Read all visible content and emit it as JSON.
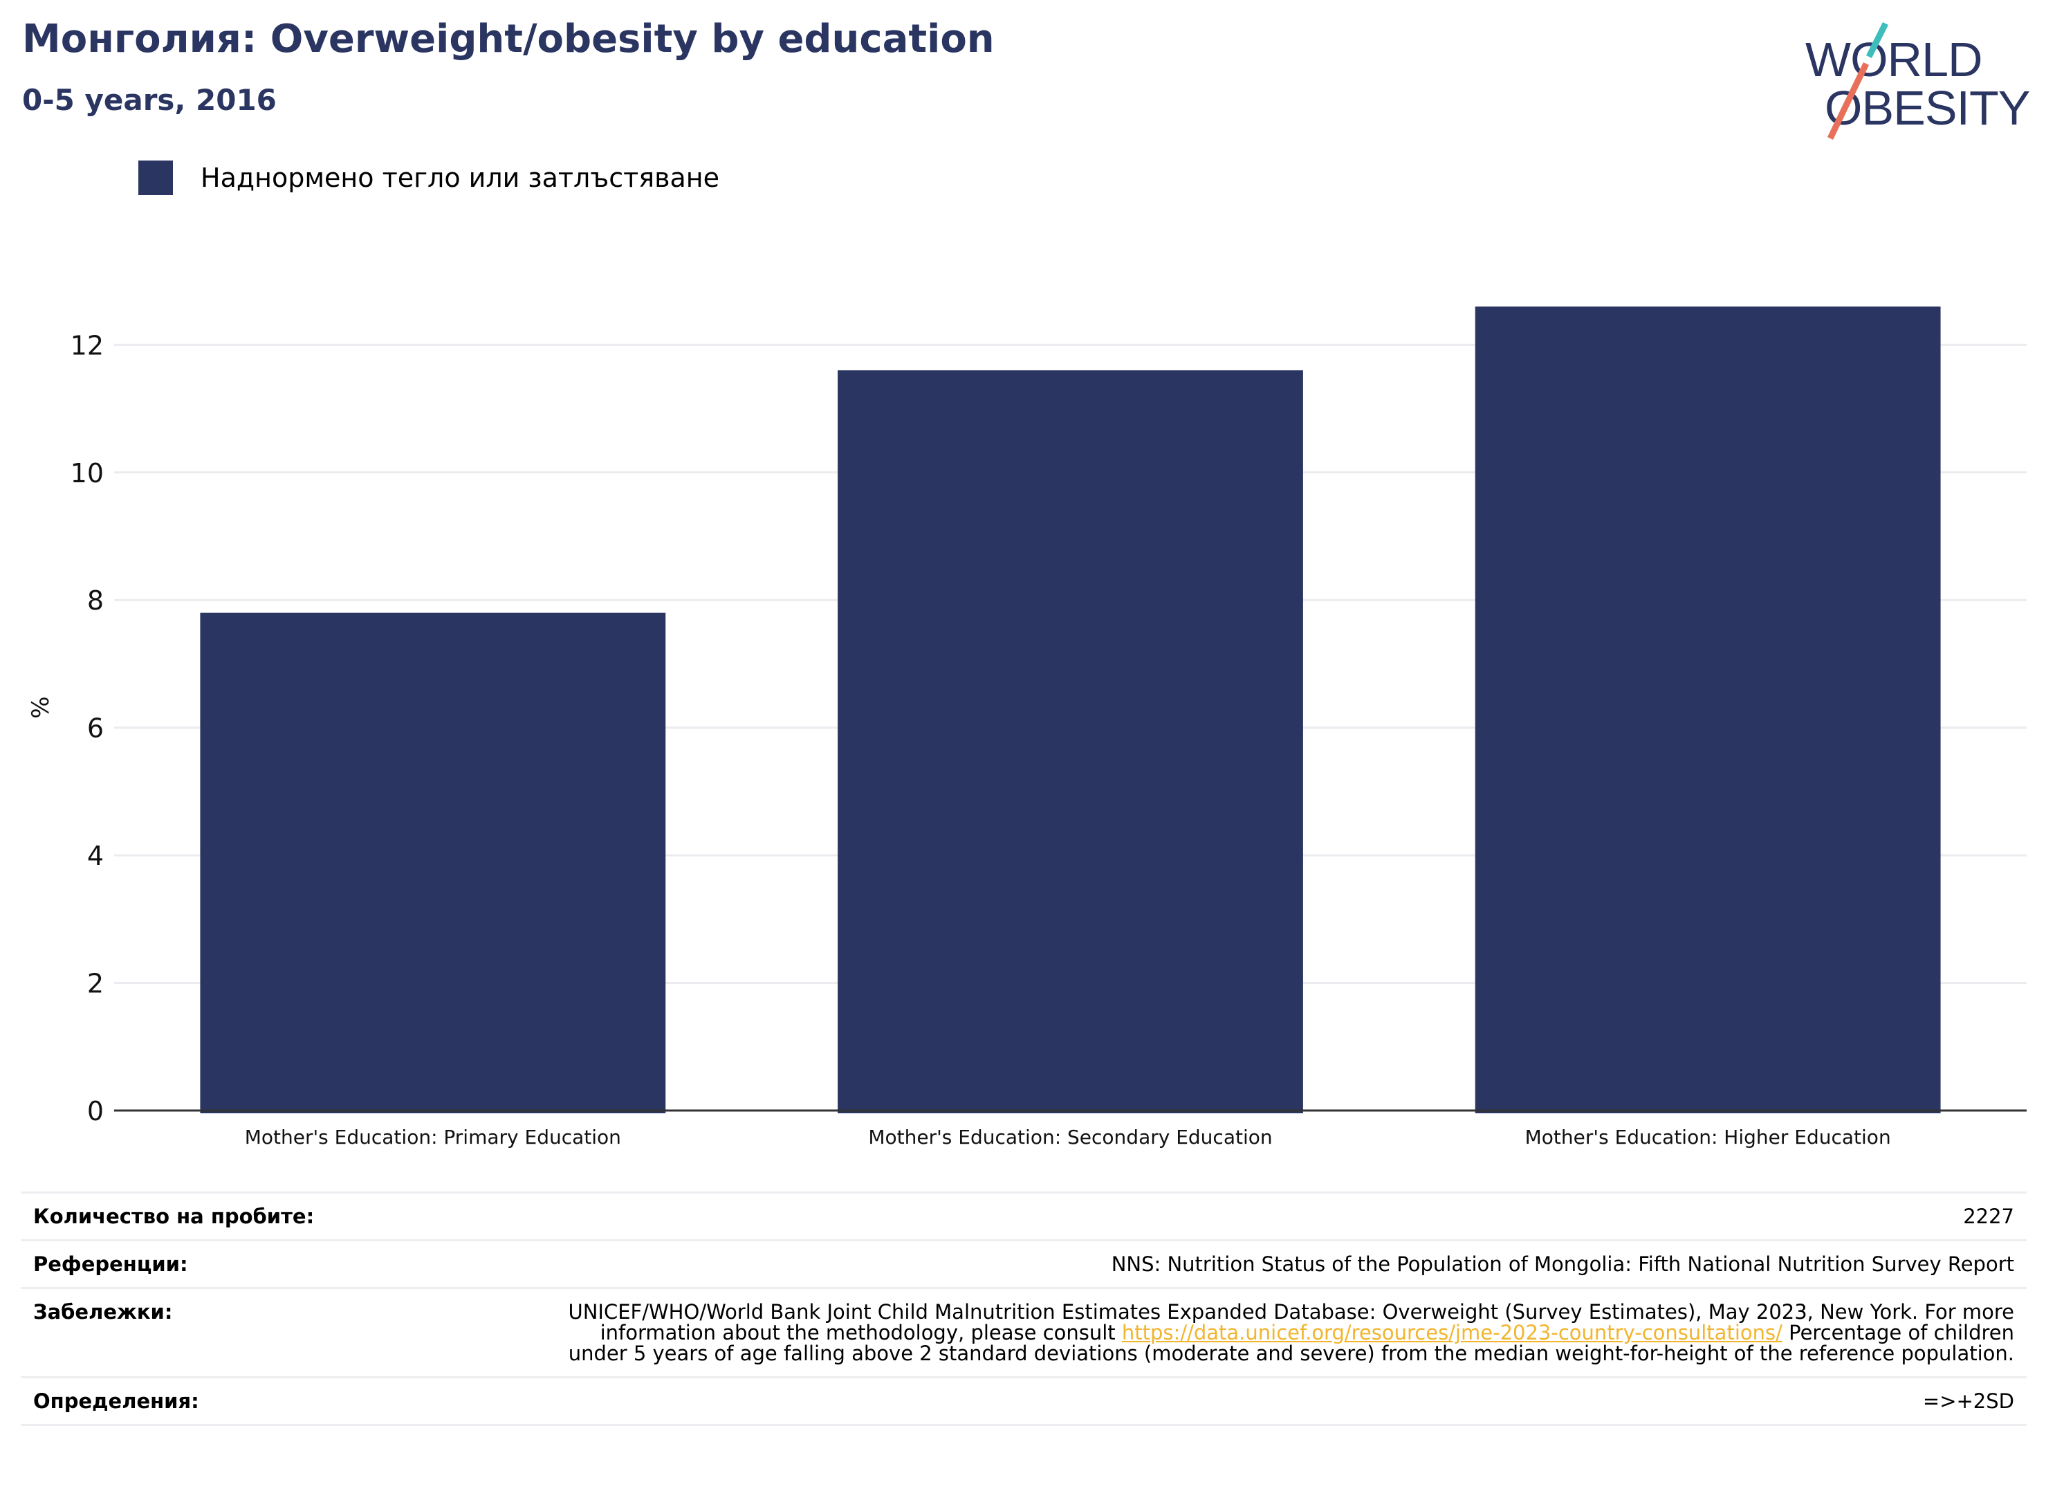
{
  "header": {
    "title": "Монголия: Overweight/obesity by education",
    "subtitle": "0-5 years, 2016"
  },
  "logo": {
    "line1": "WORLD",
    "line2": "OBESITY",
    "colors": {
      "text": "#2a3561",
      "slash_top": "#3dbdbc",
      "slash_bottom": "#e8705a"
    }
  },
  "legend": {
    "label": "Наднормено тегло или затлъстяване",
    "color": "#2a3561"
  },
  "chart_data": {
    "type": "bar",
    "categories": [
      "Mother's Education: Primary Education",
      "Mother's Education: Secondary Education",
      "Mother's Education: Higher Education"
    ],
    "series": [
      {
        "name": "Наднормено тегло или затлъстяване",
        "values": [
          7.8,
          11.6,
          12.6
        ],
        "color": "#2a3561"
      }
    ],
    "ylabel": "%",
    "ylim": [
      0,
      13.5
    ],
    "yticks": [
      0,
      2,
      4,
      6,
      8,
      10,
      12
    ],
    "grid": true,
    "legend_position": "top-left"
  },
  "meta": {
    "sample_size": {
      "label": "Количество на пробите:",
      "value": "2227"
    },
    "references": {
      "label": "Референции:",
      "value": "NNS: Nutrition Status of the Population of Mongolia: Fifth National Nutrition Survey Report"
    },
    "notes": {
      "label": "Забележки:",
      "text_before": "UNICEF/WHO/World Bank Joint Child Malnutrition Estimates Expanded Database: Overweight (Survey Estimates), May 2023, New York. For more information about the methodology, please consult ",
      "link": "https://data.unicef.org/resources/jme-2023-country-consultations/",
      "text_after": " Percentage of children under 5 years of age falling above 2 standard deviations (moderate and severe) from the median weight-for-height of the reference population.",
      "link_color": "#f2b52f"
    },
    "definitions": {
      "label": "Определения:",
      "value": "=>+2SD"
    }
  }
}
